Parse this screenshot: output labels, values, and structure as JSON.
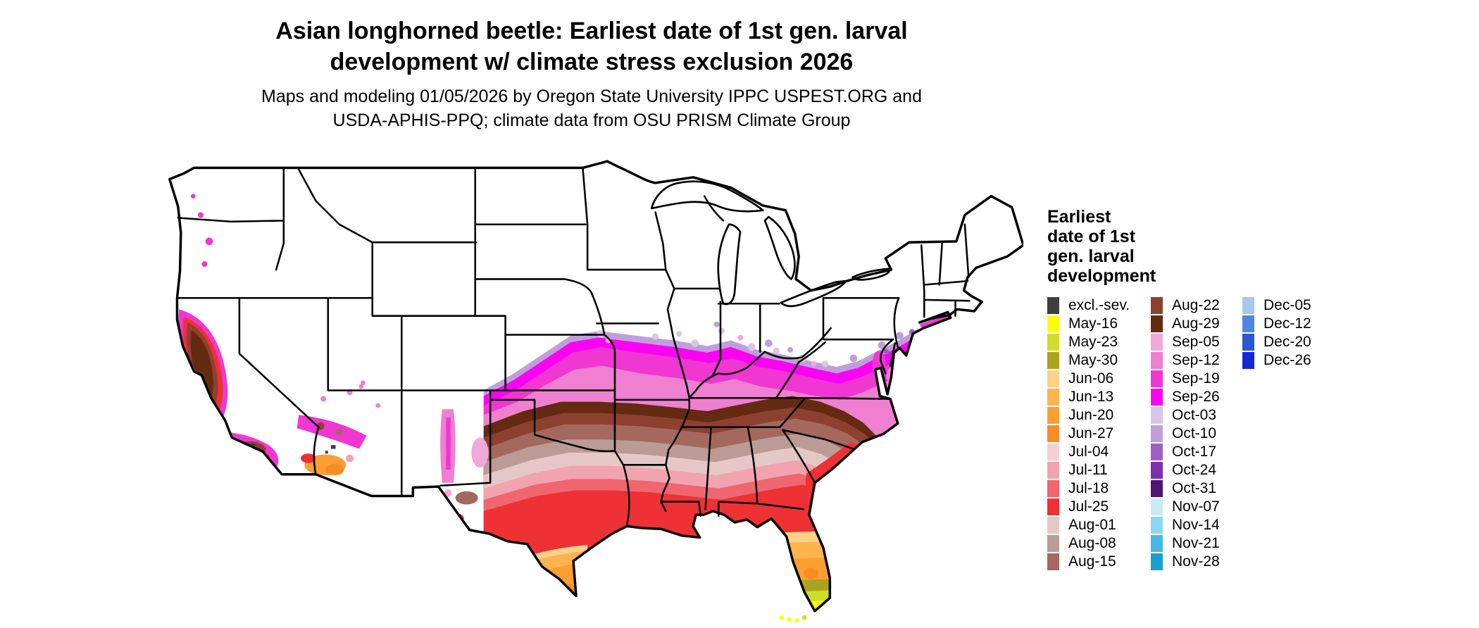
{
  "title": {
    "line1": "Asian longhorned beetle: Earliest date of 1st gen. larval",
    "line2": "development w/ climate stress exclusion 2026"
  },
  "subtitle": {
    "line1": "Maps and modeling 01/05/2026 by Oregon State University IPPC USPEST.ORG and",
    "line2": "USDA-APHIS-PPQ; climate data from OSU PRISM Climate Group"
  },
  "legend": {
    "title_lines": [
      "Earliest",
      "date of 1st",
      "gen. larval",
      "development"
    ],
    "columns": [
      [
        {
          "key": "excl",
          "label": "excl.-sev."
        },
        {
          "key": "may16",
          "label": "May-16"
        },
        {
          "key": "may23",
          "label": "May-23"
        },
        {
          "key": "may30",
          "label": "May-30"
        },
        {
          "key": "jun06",
          "label": "Jun-06"
        },
        {
          "key": "jun13",
          "label": "Jun-13"
        },
        {
          "key": "jun20",
          "label": "Jun-20"
        },
        {
          "key": "jun27",
          "label": "Jun-27"
        },
        {
          "key": "jul04",
          "label": "Jul-04"
        },
        {
          "key": "jul11",
          "label": "Jul-11"
        },
        {
          "key": "jul18",
          "label": "Jul-18"
        },
        {
          "key": "jul25",
          "label": "Jul-25"
        },
        {
          "key": "aug01",
          "label": "Aug-01"
        },
        {
          "key": "aug08",
          "label": "Aug-08"
        },
        {
          "key": "aug15",
          "label": "Aug-15"
        }
      ],
      [
        {
          "key": "aug22",
          "label": "Aug-22"
        },
        {
          "key": "aug29",
          "label": "Aug-29"
        },
        {
          "key": "sep05",
          "label": "Sep-05"
        },
        {
          "key": "sep12",
          "label": "Sep-12"
        },
        {
          "key": "sep19",
          "label": "Sep-19"
        },
        {
          "key": "sep26",
          "label": "Sep-26"
        },
        {
          "key": "oct03",
          "label": "Oct-03"
        },
        {
          "key": "oct10",
          "label": "Oct-10"
        },
        {
          "key": "oct17",
          "label": "Oct-17"
        },
        {
          "key": "oct24",
          "label": "Oct-24"
        },
        {
          "key": "oct31",
          "label": "Oct-31"
        },
        {
          "key": "nov07",
          "label": "Nov-07"
        },
        {
          "key": "nov14",
          "label": "Nov-14"
        },
        {
          "key": "nov21",
          "label": "Nov-21"
        },
        {
          "key": "nov28",
          "label": "Nov-28"
        }
      ],
      [
        {
          "key": "dec05",
          "label": "Dec-05"
        },
        {
          "key": "dec12",
          "label": "Dec-12"
        },
        {
          "key": "dec20",
          "label": "Dec-20"
        },
        {
          "key": "dec26",
          "label": "Dec-26"
        }
      ]
    ]
  },
  "palette": {
    "excl": "#3f3f3f",
    "may16": "#ffff00",
    "may23": "#cfdd2b",
    "may30": "#a8a41f",
    "jun06": "#fcd288",
    "jun13": "#fdb44f",
    "jun20": "#fb9f33",
    "jun27": "#f78d26",
    "jul04": "#f6cfd4",
    "jul11": "#f2a3b0",
    "jul18": "#ef6670",
    "jul25": "#ee3134",
    "aug01": "#e5c8c6",
    "aug08": "#bb9b96",
    "aug15": "#a5685e",
    "aug22": "#8e4030",
    "aug29": "#652a12",
    "sep05": "#f2a8d8",
    "sep12": "#ef7fd0",
    "sep19": "#f037d2",
    "sep26": "#fb02f2",
    "oct03": "#d9c6e6",
    "oct10": "#c09edb",
    "oct17": "#9d60c4",
    "oct24": "#7d2fad",
    "oct31": "#521477",
    "nov07": "#c8ecf6",
    "nov14": "#8ad8ef",
    "nov21": "#44bbe4",
    "nov28": "#189fd2",
    "dec05": "#a6c8ee",
    "dec12": "#4e86e0",
    "dec20": "#2a57d2",
    "dec26": "#1427d8"
  },
  "map": {
    "type": "choropleth-us-map",
    "outline_color": "#000000",
    "background_color": "#ffffff"
  }
}
